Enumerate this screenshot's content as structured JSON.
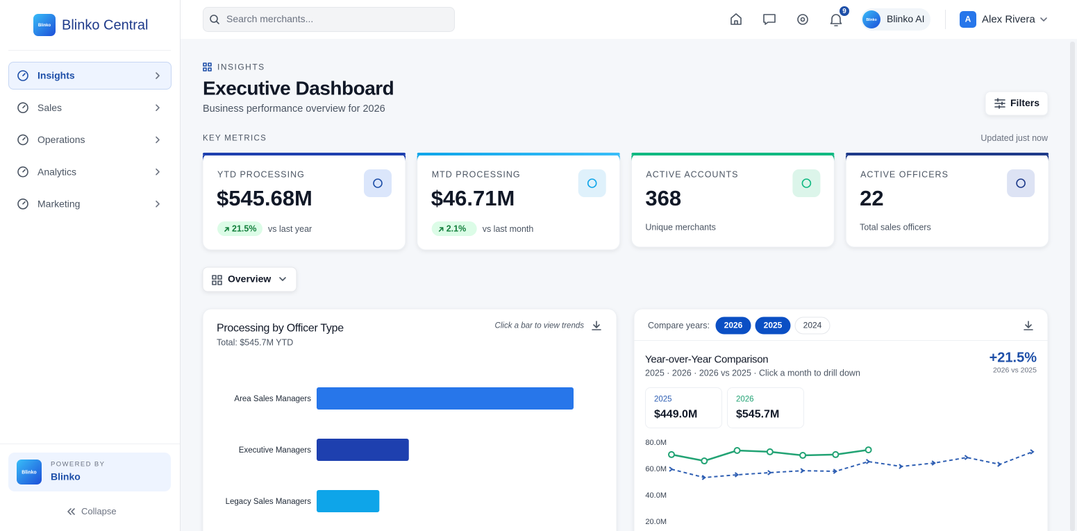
{
  "sidebar": {
    "logo": "Blinko",
    "brand": "Blinko Central",
    "nav": [
      "Insights",
      "Sales",
      "Operations",
      "Analytics",
      "Marketing"
    ],
    "powered_by": "POWERED BY",
    "powered_name": "Blinko",
    "collapse": "Collapse"
  },
  "header": {
    "search_placeholder": "Search merchants...",
    "notifications": "9",
    "ai": "Blinko AI",
    "avatar": "A",
    "user": "Alex Rivera"
  },
  "page": {
    "eyebrow": "INSIGHTS",
    "title": "Executive Dashboard",
    "subtitle": "Business performance overview for 2026",
    "filters": "Filters",
    "section": "KEY METRICS",
    "updated": "Updated just now",
    "view": "Overview"
  },
  "metrics": [
    {
      "label": "YTD PROCESSING",
      "value": "$545.68M",
      "change": "21.5%",
      "note": "vs last year"
    },
    {
      "label": "MTD PROCESSING",
      "value": "$46.71M",
      "change": "2.1%",
      "note": "vs last month"
    },
    {
      "label": "ACTIVE ACCOUNTS",
      "value": "368",
      "note": "Unique merchants"
    },
    {
      "label": "ACTIVE OFFICERS",
      "value": "22",
      "note": "Total sales officers"
    }
  ],
  "chart_data": [
    {
      "type": "bar",
      "orientation": "horizontal",
      "title": "Processing by Officer Type",
      "subtitle": "Total: $545.7M YTD",
      "hint": "Click a bar to view trends",
      "categories": [
        "Area Sales Managers",
        "Executive Managers",
        "Legacy Sales Managers"
      ],
      "values": [
        340,
        122,
        83
      ],
      "colors": [
        "#2776ea",
        "#1e40af",
        "#0ea5e9"
      ]
    },
    {
      "type": "line",
      "compare_label": "Compare years:",
      "years": [
        "2026",
        "2025",
        "2024"
      ],
      "title": "Year-over-Year Comparison",
      "subtitle": "2025 · 2026 · 2026 vs 2025 · Click a month to drill down",
      "change": "+21.5%",
      "change_note": "2026 vs 2025",
      "summary": [
        {
          "name": "2025",
          "value": "$449.0M"
        },
        {
          "name": "2026",
          "value": "$545.7M"
        }
      ],
      "categories": [
        null,
        null,
        null,
        null,
        null,
        null,
        null,
        null,
        null,
        null,
        null,
        null
      ],
      "series": [
        {
          "name": "2026",
          "color": "#22a374",
          "dashed": false,
          "values": [
            71.1,
            66.3,
            74.2,
            73.2,
            70.5,
            71.1,
            74.7,
            null,
            null,
            null,
            null,
            null
          ]
        },
        {
          "name": "2025",
          "color": "#2f5fb3",
          "dashed": true,
          "values": [
            60,
            53.7,
            55.8,
            57.4,
            58.9,
            58.4,
            65.8,
            62.1,
            64.7,
            68.9,
            63.7,
            73.2
          ]
        }
      ],
      "ylim": [
        0,
        80
      ],
      "yticks": [
        {
          "value": 80,
          "label": "80.0M"
        },
        {
          "value": 60,
          "label": "60.0M"
        },
        {
          "value": 40,
          "label": "40.0M"
        },
        {
          "value": 20,
          "label": "20.0M"
        }
      ]
    }
  ]
}
